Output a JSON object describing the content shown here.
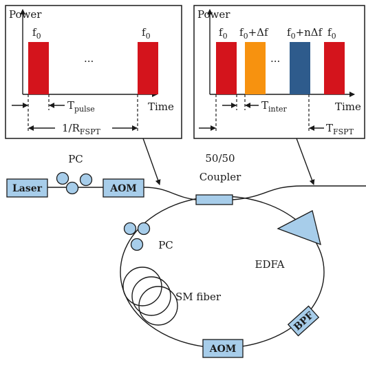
{
  "panel_left": {
    "axis_y": "Power",
    "axis_x": "Time",
    "pulse1_label": "f",
    "pulse1_sub": "0",
    "pulse2_label": "f",
    "pulse2_sub": "0",
    "ellipsis": "...",
    "t_pulse": "T",
    "t_pulse_sub": "pulse",
    "rate_label": "1/R",
    "rate_sub": "FSPT"
  },
  "panel_right": {
    "axis_y": "Power",
    "axis_x": "Time",
    "pulse1_label": "f",
    "pulse1_sub": "0",
    "pulse2_label": "f",
    "pulse2_sub": "0",
    "pulse2_suffix": "+Δf",
    "pulse3_label": "f",
    "pulse3_sub": "0",
    "pulse3_suffix": "+nΔf",
    "pulse4_label": "f",
    "pulse4_sub": "0",
    "ellipsis": "...",
    "t_inter": "T",
    "t_inter_sub": "inter",
    "t_fspt": "T",
    "t_fspt_sub": "FSPT"
  },
  "setup": {
    "laser": "Laser",
    "pc_top": "PC",
    "aom_top": "AOM",
    "coupler_line1": "50/50",
    "coupler_line2": "Coupler",
    "edfa": "EDFA",
    "pc_loop": "PC",
    "sm_fiber": "SM fiber",
    "bpf": "BPF",
    "aom_bottom": "AOM"
  },
  "colors": {
    "pulse_red": "#d4141c",
    "pulse_orange": "#f7920f",
    "pulse_blue": "#2e5b8c",
    "component_fill": "#a7cdea"
  }
}
